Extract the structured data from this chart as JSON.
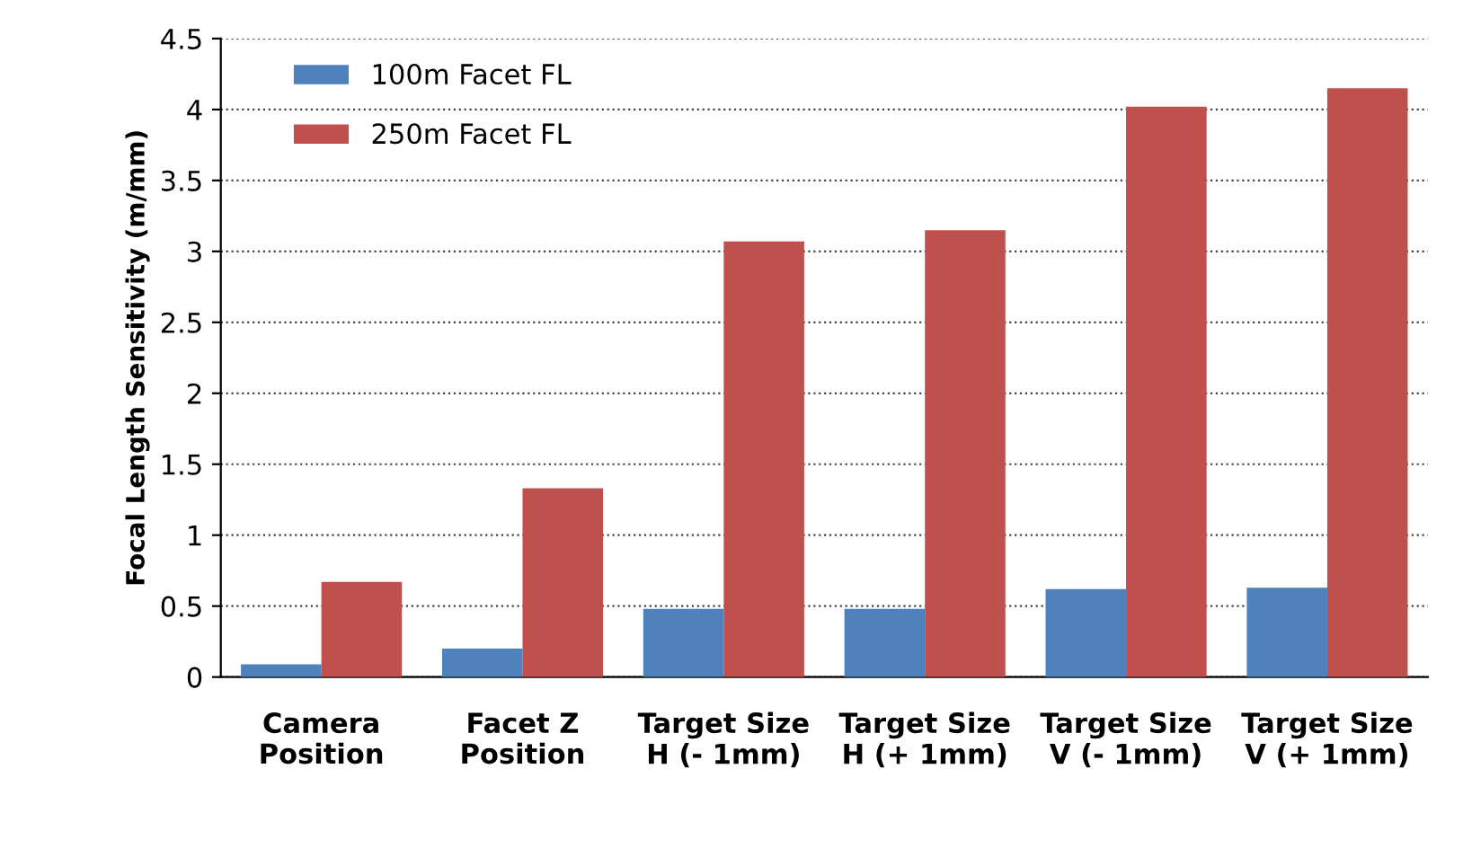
{
  "chart_data": {
    "type": "bar",
    "ylabel": "Focal Length Sensitivity (m/mm)",
    "categories": [
      "Camera\nPosition",
      "Facet Z\nPosition",
      "Target Size\nH (- 1mm)",
      "Target Size\nH (+ 1mm)",
      "Target Size\nV (- 1mm)",
      "Target Size\nV (+ 1mm)"
    ],
    "series": [
      {
        "name": "100m Facet FL",
        "color": "#4f81bd",
        "values": [
          0.09,
          0.2,
          0.48,
          0.48,
          0.62,
          0.63
        ]
      },
      {
        "name": "250m Facet FL",
        "color": "#c0504d",
        "values": [
          0.67,
          1.33,
          3.07,
          3.15,
          4.02,
          4.15
        ]
      }
    ],
    "ylim": [
      0,
      4.5
    ],
    "yticks": [
      0,
      0.5,
      1,
      1.5,
      2,
      2.5,
      3,
      3.5,
      4,
      4.5
    ],
    "grid": "y",
    "legend": "top left"
  }
}
